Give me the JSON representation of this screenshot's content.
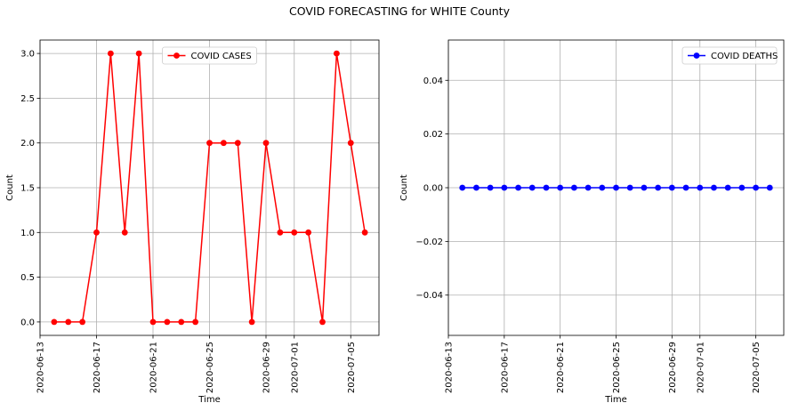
{
  "figure": {
    "title": "COVID FORECASTING for WHITE County"
  },
  "chart_data": [
    {
      "type": "line",
      "title": "",
      "xlabel": "Time",
      "ylabel": "Count",
      "x": [
        "2020-06-14",
        "2020-06-15",
        "2020-06-16",
        "2020-06-17",
        "2020-06-18",
        "2020-06-19",
        "2020-06-20",
        "2020-06-21",
        "2020-06-22",
        "2020-06-23",
        "2020-06-24",
        "2020-06-25",
        "2020-06-26",
        "2020-06-27",
        "2020-06-28",
        "2020-06-29",
        "2020-06-30",
        "2020-07-01",
        "2020-07-02",
        "2020-07-03",
        "2020-07-04",
        "2020-07-05",
        "2020-07-06"
      ],
      "series": [
        {
          "name": "COVID CASES",
          "color": "#ff0000",
          "values": [
            0,
            0,
            0,
            1,
            3,
            1,
            3,
            0,
            0,
            0,
            0,
            2,
            2,
            2,
            0,
            2,
            1,
            1,
            1,
            0,
            3,
            2,
            1
          ]
        }
      ],
      "xlim": [
        "2020-06-13",
        "2020-07-07"
      ],
      "ylim": [
        -0.15,
        3.15
      ],
      "xticks": [
        "2020-06-13",
        "2020-06-17",
        "2020-06-21",
        "2020-06-25",
        "2020-06-29",
        "2020-07-01",
        "2020-07-05"
      ],
      "yticks": [
        "0.0",
        "0.5",
        "1.0",
        "1.5",
        "2.0",
        "2.5",
        "3.0"
      ],
      "grid": true,
      "legend_position": "top-center"
    },
    {
      "type": "line",
      "title": "",
      "xlabel": "Time",
      "ylabel": "Count",
      "x": [
        "2020-06-14",
        "2020-06-15",
        "2020-06-16",
        "2020-06-17",
        "2020-06-18",
        "2020-06-19",
        "2020-06-20",
        "2020-06-21",
        "2020-06-22",
        "2020-06-23",
        "2020-06-24",
        "2020-06-25",
        "2020-06-26",
        "2020-06-27",
        "2020-06-28",
        "2020-06-29",
        "2020-06-30",
        "2020-07-01",
        "2020-07-02",
        "2020-07-03",
        "2020-07-04",
        "2020-07-05",
        "2020-07-06"
      ],
      "series": [
        {
          "name": "COVID DEATHS",
          "color": "#0000ff",
          "values": [
            0,
            0,
            0,
            0,
            0,
            0,
            0,
            0,
            0,
            0,
            0,
            0,
            0,
            0,
            0,
            0,
            0,
            0,
            0,
            0,
            0,
            0,
            0
          ]
        }
      ],
      "xlim": [
        "2020-06-13",
        "2020-07-07"
      ],
      "ylim": [
        -0.055,
        0.055
      ],
      "xticks": [
        "2020-06-13",
        "2020-06-17",
        "2020-06-21",
        "2020-06-25",
        "2020-06-29",
        "2020-07-01",
        "2020-07-05"
      ],
      "yticks": [
        "−0.04",
        "−0.02",
        "0.00",
        "0.02",
        "0.04"
      ],
      "grid": true,
      "legend_position": "top-right"
    }
  ]
}
